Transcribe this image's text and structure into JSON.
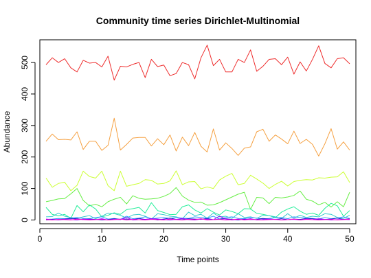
{
  "chart_data": {
    "type": "line",
    "title": "Community time series Dirichlet-Multinomial",
    "xlabel": "Time points",
    "ylabel": "Abundance",
    "xlim": [
      0,
      51
    ],
    "ylim": [
      -12,
      572
    ],
    "xticks": [
      0,
      10,
      20,
      30,
      40,
      50
    ],
    "yticks": [
      0,
      100,
      200,
      300,
      400,
      500
    ],
    "grid": false,
    "x": [
      1,
      2,
      3,
      4,
      5,
      6,
      7,
      8,
      9,
      10,
      11,
      12,
      13,
      14,
      15,
      16,
      17,
      18,
      19,
      20,
      21,
      22,
      23,
      24,
      25,
      26,
      27,
      28,
      29,
      30,
      31,
      32,
      33,
      34,
      35,
      36,
      37,
      38,
      39,
      40,
      41,
      42,
      43,
      44,
      45,
      46,
      47,
      48,
      49,
      50
    ],
    "series": [
      {
        "color": "#ee2c2c",
        "values": [
          493,
          515,
          500,
          512,
          483,
          470,
          507,
          498,
          500,
          486,
          520,
          444,
          488,
          486,
          494,
          500,
          452,
          510,
          487,
          492,
          458,
          465,
          500,
          493,
          448,
          515,
          555,
          490,
          510,
          470,
          470,
          510,
          500,
          540,
          472,
          488,
          510,
          512,
          493,
          517,
          463,
          502,
          473,
          510,
          553,
          497,
          483,
          512,
          515,
          496
        ]
      },
      {
        "color": "#f5a040",
        "values": [
          250,
          273,
          255,
          256,
          254,
          280,
          224,
          250,
          250,
          221,
          237,
          323,
          222,
          240,
          260,
          262,
          262,
          235,
          258,
          239,
          270,
          219,
          263,
          236,
          278,
          234,
          216,
          289,
          222,
          245,
          227,
          205,
          228,
          232,
          280,
          288,
          250,
          270,
          257,
          242,
          282,
          243,
          256,
          240,
          203,
          242,
          290,
          225,
          248,
          222
        ]
      },
      {
        "color": "#ccff33",
        "values": [
          133,
          104,
          116,
          120,
          93,
          110,
          155,
          138,
          133,
          155,
          109,
          93,
          155,
          107,
          112,
          116,
          128,
          126,
          114,
          116,
          124,
          156,
          112,
          121,
          122,
          99,
          105,
          100,
          127,
          139,
          148,
          112,
          116,
          142,
          130,
          117,
          100,
          113,
          123,
          108,
          122,
          126,
          128,
          127,
          134,
          133,
          136,
          137,
          153,
          119
        ]
      },
      {
        "color": "#66ee44",
        "values": [
          58,
          62,
          67,
          68,
          83,
          100,
          62,
          45,
          50,
          42,
          58,
          66,
          72,
          51,
          77,
          69,
          66,
          67,
          69,
          75,
          84,
          103,
          76,
          63,
          56,
          57,
          47,
          48,
          55,
          64,
          73,
          82,
          88,
          34,
          72,
          70,
          52,
          72,
          70,
          73,
          78,
          92,
          66,
          60,
          48,
          56,
          41,
          58,
          42,
          88
        ]
      },
      {
        "color": "#22ee99",
        "values": [
          40,
          18,
          13,
          18,
          5,
          46,
          26,
          48,
          35,
          10,
          15,
          23,
          18,
          33,
          36,
          40,
          22,
          55,
          30,
          24,
          17,
          18,
          42,
          48,
          32,
          22,
          36,
          25,
          16,
          32,
          27,
          20,
          36,
          35,
          21,
          18,
          14,
          7,
          25,
          35,
          42,
          28,
          18,
          22,
          15,
          37,
          53,
          45,
          12,
          30
        ]
      },
      {
        "color": "#33cccc",
        "values": [
          10,
          11,
          22,
          12,
          8,
          5,
          10,
          14,
          4,
          12,
          22,
          20,
          15,
          6,
          16,
          18,
          12,
          3,
          20,
          17,
          12,
          10,
          4,
          25,
          14,
          18,
          6,
          22,
          10,
          12,
          5,
          20,
          8,
          10,
          5,
          15,
          14,
          10,
          5,
          20,
          6,
          15,
          8,
          12,
          10,
          20,
          18,
          8,
          5,
          15
        ]
      },
      {
        "color": "#3399ff",
        "values": [
          2,
          3,
          5,
          4,
          6,
          8,
          5,
          4,
          8,
          10,
          3,
          5,
          2,
          12,
          4,
          6,
          10,
          4,
          6,
          8,
          5,
          8,
          6,
          5,
          10,
          8,
          6,
          12,
          3,
          8,
          10,
          5,
          4,
          8,
          6,
          3,
          5,
          7,
          8,
          4,
          10,
          8,
          6,
          5,
          3,
          8,
          4,
          6,
          10,
          5
        ]
      },
      {
        "color": "#2222cc",
        "values": [
          0,
          2,
          1,
          3,
          5,
          4,
          1,
          3,
          2,
          0,
          1,
          4,
          2,
          3,
          1,
          5,
          2,
          4,
          0,
          3,
          6,
          2,
          1,
          4,
          3,
          2,
          5,
          1,
          3,
          4,
          2,
          0,
          3,
          1,
          2,
          5,
          3,
          2,
          4,
          1,
          3,
          2,
          5,
          4,
          1,
          2,
          3,
          6,
          2,
          4
        ]
      },
      {
        "color": "#9900ff",
        "values": [
          3,
          1,
          0,
          2,
          1,
          0,
          3,
          2,
          1,
          4,
          0,
          2,
          1,
          8,
          0,
          1,
          2,
          4,
          3,
          1,
          0,
          2,
          5,
          1,
          0,
          3,
          2,
          1,
          12,
          3,
          0,
          2,
          1,
          4,
          0,
          1,
          3,
          2,
          0,
          1,
          2,
          0,
          3,
          1,
          4,
          2,
          0,
          1,
          2,
          1
        ]
      },
      {
        "color": "#ff00cc",
        "values": [
          1,
          0,
          2,
          1,
          0,
          3,
          1,
          0,
          1,
          2,
          0,
          1,
          3,
          0,
          2,
          1,
          0,
          2,
          1,
          0,
          3,
          1,
          0,
          2,
          1,
          4,
          0,
          1,
          2,
          0,
          1,
          3,
          0,
          2,
          1,
          0,
          1,
          2,
          0,
          1,
          3,
          0,
          2,
          1,
          0,
          1,
          2,
          0,
          1,
          3
        ]
      }
    ]
  }
}
